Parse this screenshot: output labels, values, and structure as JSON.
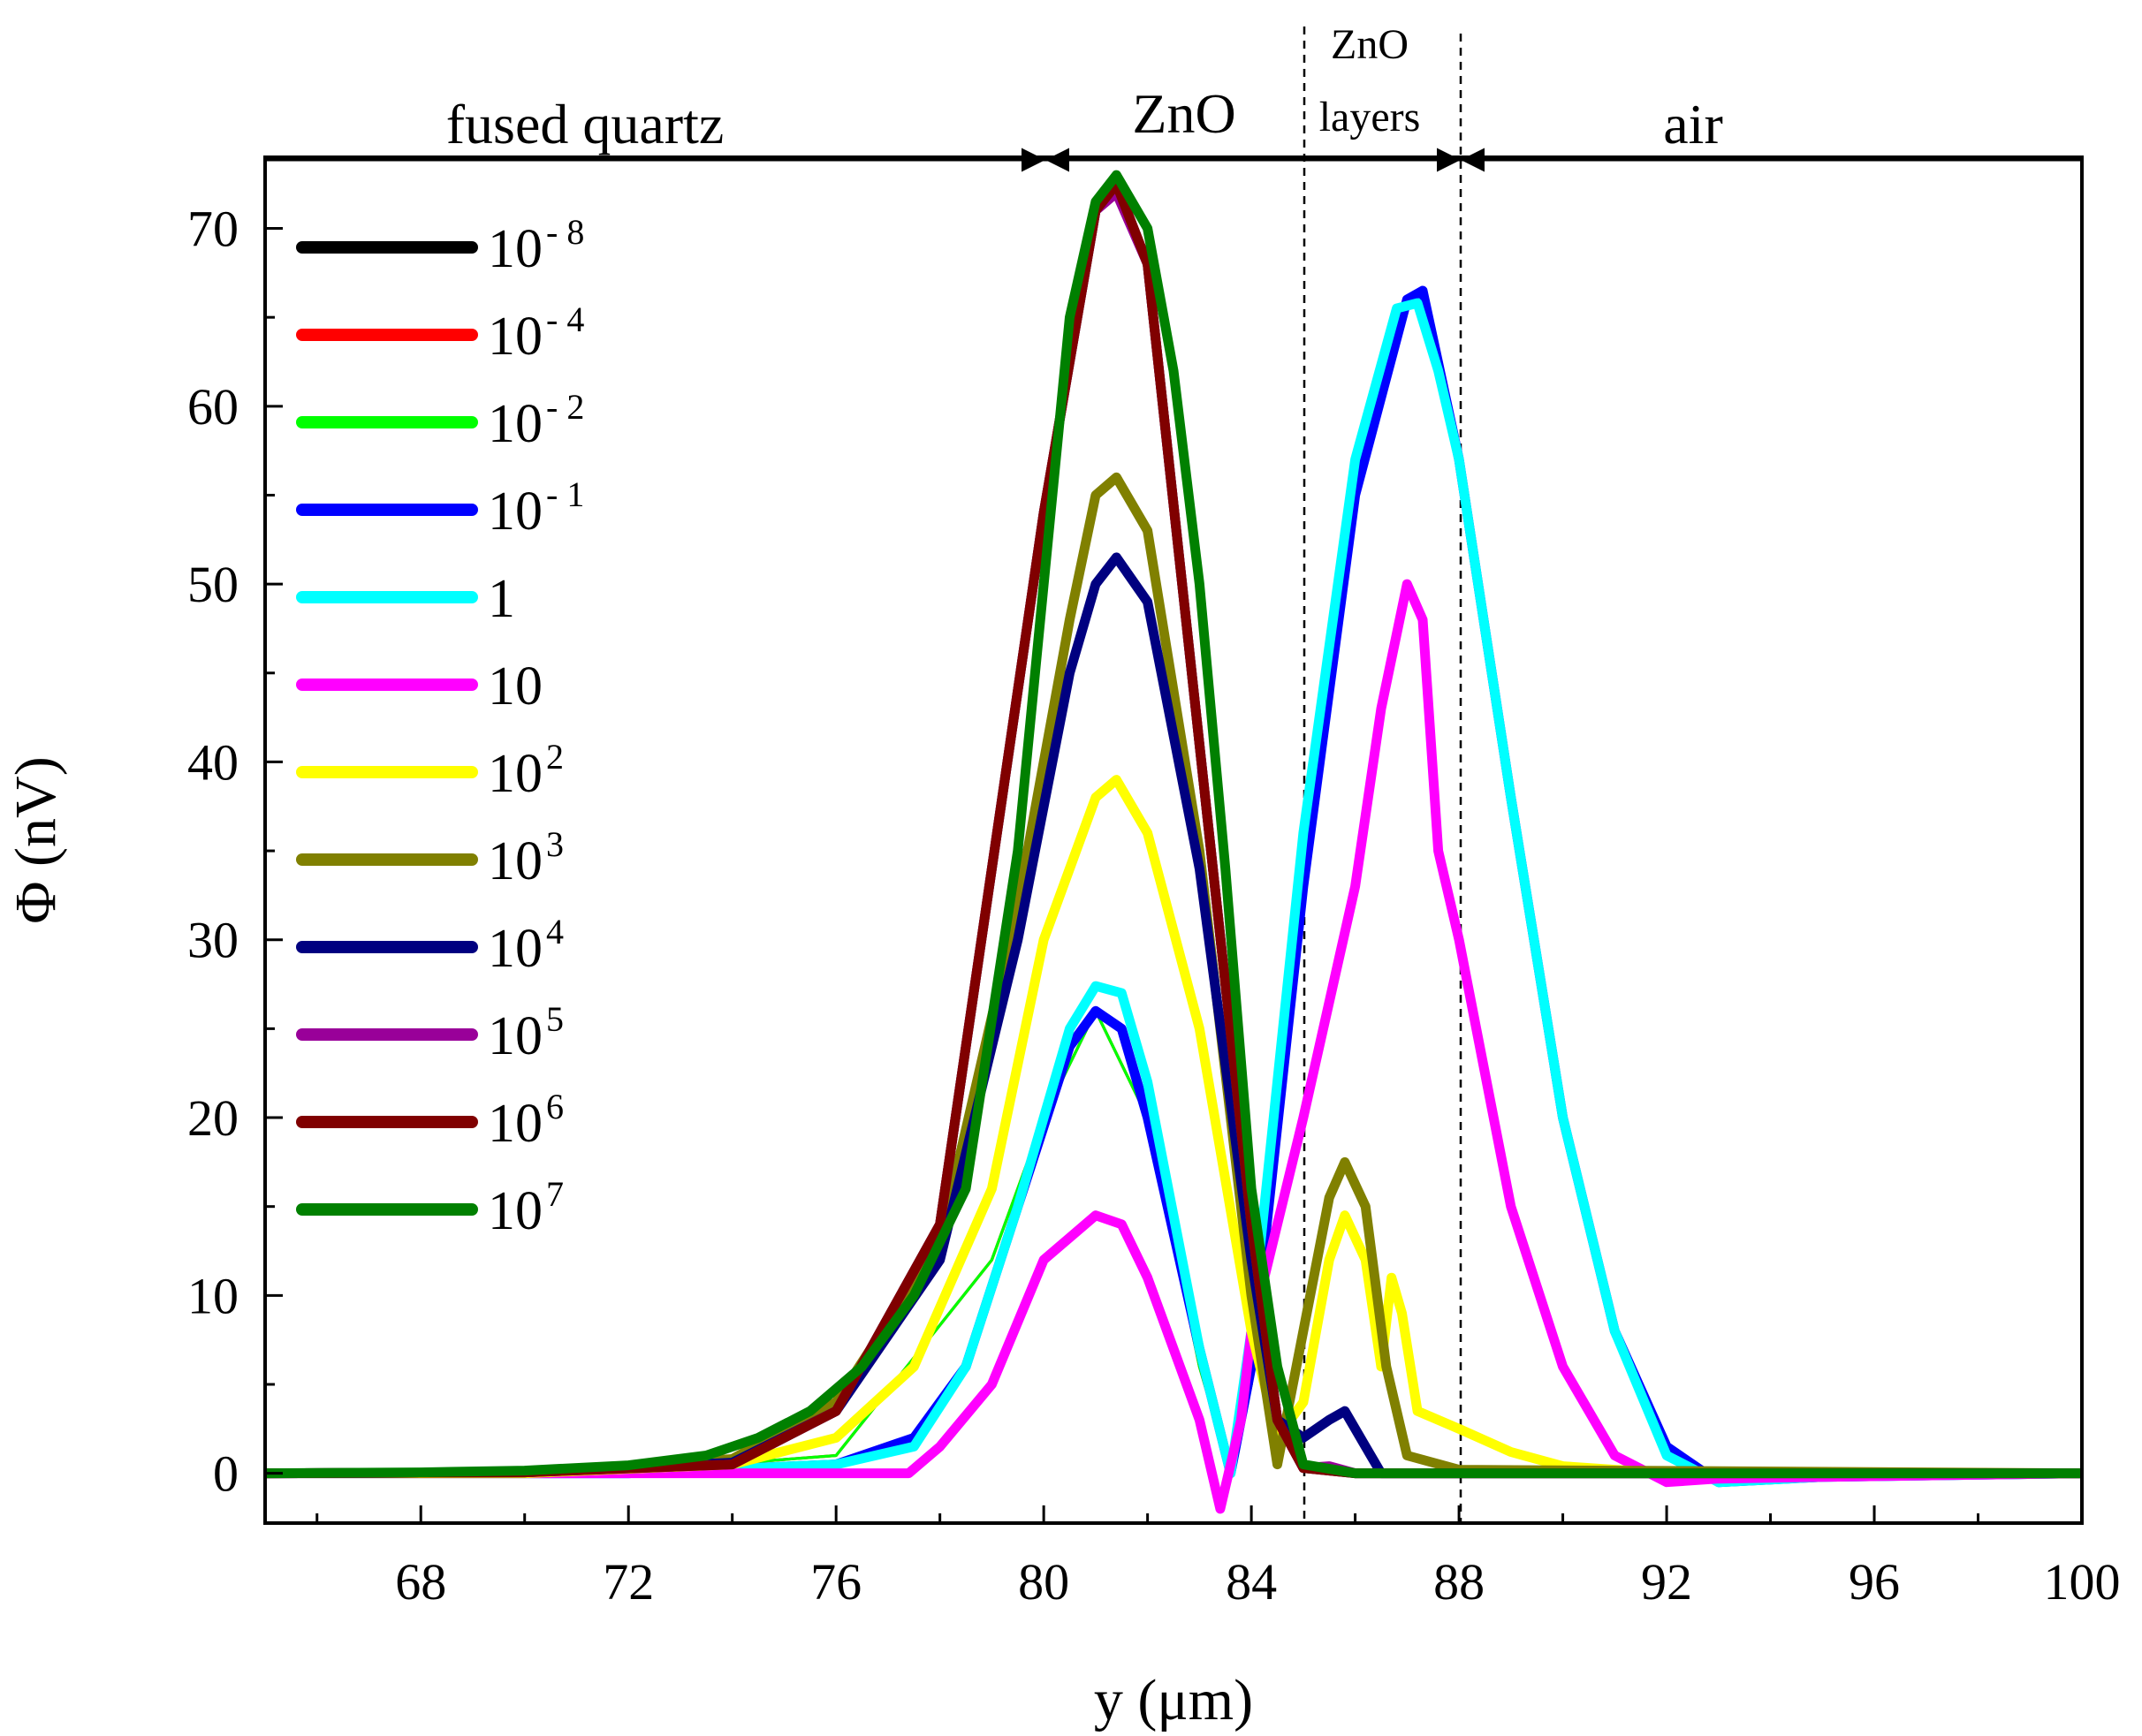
{
  "chart_data": {
    "type": "line",
    "title": "",
    "xlabel": "y (μm)",
    "ylabel": "Φ (nV)",
    "xlim": [
      65,
      100
    ],
    "ylim": [
      -2.8,
      74
    ],
    "xticks": [
      68,
      72,
      76,
      80,
      84,
      88,
      92,
      96,
      100
    ],
    "yticks": [
      0,
      10,
      20,
      30,
      40,
      50,
      60,
      70
    ],
    "grid": false,
    "legend_position": "top-left",
    "regions": [
      {
        "label": "fused quartz",
        "x_start": 65,
        "x_end": 80
      },
      {
        "label": "ZnO",
        "x_start": 80,
        "x_end": 88
      },
      {
        "label_line1": "ZnO",
        "label_line2": "layers",
        "x_start": 85,
        "x_end": 88
      },
      {
        "label": "air",
        "x_start": 88,
        "x_end": 100
      }
    ],
    "boundaries": [
      85,
      88
    ],
    "series": [
      {
        "name": "10-8",
        "base": "10",
        "exp": "- 8",
        "color": "#000000",
        "x": [
          65,
          70,
          74,
          76,
          78,
          80,
          81,
          81.4,
          82,
          84,
          84.5,
          85,
          86,
          88,
          92,
          100
        ],
        "y": [
          0,
          0.05,
          0.5,
          3.5,
          14,
          54,
          71,
          72.5,
          68,
          14,
          3,
          0.3,
          0,
          0,
          0,
          0
        ]
      },
      {
        "name": "10-4",
        "base": "10",
        "exp": "- 4",
        "color": "#ff0000",
        "x": [
          65,
          72,
          76,
          79,
          80,
          81,
          82,
          83,
          83.6,
          84,
          85,
          86,
          87,
          87.3,
          88,
          89,
          90,
          91,
          92,
          93,
          95,
          100
        ],
        "y": [
          0,
          0.1,
          1,
          12,
          20,
          26,
          20,
          6,
          0,
          5,
          32,
          55,
          66,
          66.5,
          57,
          38,
          20,
          8,
          1.5,
          -0.5,
          -0.2,
          0
        ],
        "width_scale": 0.3
      },
      {
        "name": "10-2",
        "base": "10",
        "exp": "- 2",
        "color": "#00ff00",
        "x": [
          65,
          72,
          76,
          79,
          80,
          81,
          82,
          83,
          83.6,
          84,
          85,
          86,
          87,
          87.3,
          88,
          89,
          90,
          91,
          92,
          93,
          95,
          100
        ],
        "y": [
          0,
          0.1,
          1,
          12,
          20,
          26,
          20,
          6,
          0,
          5,
          32,
          55,
          66,
          66.5,
          57,
          38,
          20,
          8,
          1.5,
          -0.5,
          -0.2,
          0
        ],
        "width_scale": 0.3
      },
      {
        "name": "10-1",
        "base": "10",
        "exp": "- 1",
        "color": "#0000ff",
        "x": [
          65,
          72,
          76,
          77.5,
          78.5,
          79.5,
          80.5,
          81,
          81.5,
          82,
          83,
          83.6,
          84,
          85,
          86,
          87,
          87.3,
          88,
          89,
          90,
          91,
          92,
          93,
          95,
          100
        ],
        "y": [
          0,
          0,
          0.5,
          2,
          6,
          15,
          24,
          26,
          25,
          20,
          7,
          0,
          6,
          33,
          55,
          66,
          66.5,
          57,
          38,
          20,
          8,
          1.5,
          -0.5,
          -0.2,
          0
        ]
      },
      {
        "name": "1",
        "base": "1",
        "exp": "",
        "color": "#00ffff",
        "x": [
          65,
          72,
          76,
          77.5,
          78.5,
          79.5,
          80.5,
          81,
          81.5,
          82,
          83,
          83.6,
          84,
          85,
          86,
          86.8,
          87.2,
          87.6,
          88,
          89,
          90,
          91,
          92,
          93,
          95,
          100
        ],
        "y": [
          0,
          0,
          0.5,
          1.5,
          6,
          15,
          25,
          27.4,
          27,
          22,
          7,
          0,
          8,
          36,
          57,
          65.5,
          65.8,
          62,
          57,
          38,
          20,
          8,
          1,
          -0.5,
          -0.2,
          0
        ]
      },
      {
        "name": "10",
        "base": "10",
        "exp": "",
        "color": "#ff00ff",
        "x": [
          65,
          75,
          77.4,
          78,
          79,
          80,
          81,
          81.5,
          82,
          83,
          83.4,
          83.8,
          84,
          85,
          86,
          86.5,
          87,
          87.3,
          87.6,
          88,
          89,
          90,
          91,
          92,
          93,
          95,
          100
        ],
        "y": [
          0,
          0,
          0,
          1.5,
          5,
          12,
          14.5,
          14,
          11,
          3,
          -2,
          3,
          8,
          20,
          33,
          43,
          50,
          48,
          35,
          30,
          15,
          6,
          1,
          -0.5,
          -0.3,
          -0.2,
          0
        ]
      },
      {
        "name": "10^2",
        "base": "10",
        "exp": "2",
        "color": "#ffff00",
        "x": [
          65,
          70,
          74,
          76,
          77.5,
          79,
          80,
          81,
          81.4,
          82,
          83,
          84,
          84.5,
          85,
          85.5,
          85.8,
          86.2,
          86.5,
          86.7,
          86.9,
          87.2,
          88,
          89,
          90,
          92,
          100
        ],
        "y": [
          0,
          0,
          0.5,
          2,
          6,
          16,
          30,
          38,
          39,
          36,
          25,
          8,
          2,
          4,
          12,
          14.5,
          12,
          6,
          11,
          9,
          3.5,
          2.5,
          1.2,
          0.4,
          0,
          0
        ]
      },
      {
        "name": "10^3",
        "base": "10",
        "exp": "3",
        "color": "#808000",
        "x": [
          65,
          70,
          74,
          76,
          78,
          79.5,
          80.5,
          81,
          81.4,
          82,
          83,
          84,
          84.5,
          85,
          85.5,
          85.8,
          86.2,
          86.6,
          87,
          88,
          100
        ],
        "y": [
          0,
          0.05,
          0.8,
          4,
          13,
          32,
          48,
          55,
          56,
          53,
          35,
          10,
          0.5,
          8,
          15.5,
          17.5,
          15,
          6,
          1,
          0.2,
          0
        ]
      },
      {
        "name": "10^4",
        "base": "10",
        "exp": "4",
        "color": "#000080",
        "x": [
          65,
          70,
          74,
          76,
          78,
          79.5,
          80.5,
          81,
          81.4,
          82,
          83,
          84,
          84.5,
          85,
          85.5,
          85.8,
          86.2,
          86.5,
          88,
          100
        ],
        "y": [
          0,
          0.05,
          0.6,
          3.5,
          12,
          30,
          45,
          50,
          51.5,
          49,
          34,
          12,
          3,
          2,
          3,
          3.5,
          1.5,
          0,
          0,
          0
        ]
      },
      {
        "name": "10^5",
        "base": "10",
        "exp": "5",
        "color": "#990099",
        "x": [
          65,
          70,
          74,
          76,
          78,
          80,
          81,
          81.4,
          82,
          84,
          84.5,
          85,
          85.5,
          86,
          88,
          100
        ],
        "y": [
          0,
          0.05,
          0.5,
          3.5,
          14,
          54,
          71,
          72,
          68,
          14,
          3,
          0.3,
          0.4,
          0,
          0,
          0
        ]
      },
      {
        "name": "10^6",
        "base": "10",
        "exp": "6",
        "color": "#800000",
        "x": [
          65,
          70,
          74,
          76,
          78,
          80,
          81,
          81.4,
          82,
          84,
          84.5,
          85,
          86,
          88,
          100
        ],
        "y": [
          0,
          0.05,
          0.5,
          3.5,
          14,
          54,
          71,
          72.5,
          68,
          14,
          3,
          0.3,
          0,
          0,
          0
        ]
      },
      {
        "name": "10^7",
        "base": "10",
        "exp": "7",
        "color": "#008000",
        "x": [
          65,
          68,
          70,
          72,
          73.5,
          74.5,
          75.5,
          76.5,
          77.5,
          78.5,
          79.5,
          80.5,
          81,
          81.4,
          82,
          82.5,
          83,
          83.5,
          84,
          84.5,
          85,
          86,
          88,
          100
        ],
        "y": [
          0,
          0.05,
          0.15,
          0.45,
          1,
          2,
          3.5,
          6,
          10,
          16,
          35,
          65,
          71.5,
          73,
          70,
          62,
          50,
          34,
          16,
          6,
          0.5,
          0,
          0,
          0
        ]
      }
    ]
  }
}
